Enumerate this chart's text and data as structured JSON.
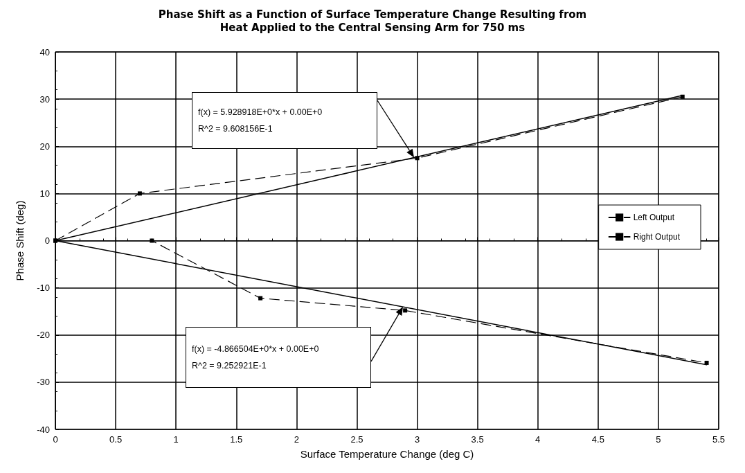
{
  "chart_data": {
    "type": "line",
    "title": "Phase Shift as a Function of Surface Temperature Change Resulting from\nHeat Applied to the Central Sensing Arm for 750 ms",
    "xlabel": "Surface Temperature Change (deg C)",
    "ylabel": "Phase Shift (deg)",
    "series": [
      {
        "name": "Left Output",
        "color": "#000000",
        "x": [
          0,
          0.7,
          3.0,
          5.2
        ],
        "values": [
          0,
          10,
          17.5,
          30.5
        ]
      },
      {
        "name": "Right Output",
        "color": "#000000",
        "x": [
          0,
          0.8,
          1.7,
          2.9,
          5.4
        ],
        "values": [
          0,
          0,
          -12.2,
          -14.8,
          -25.9
        ]
      },
      {
        "color": "#000000",
        "x": [
          0,
          5.2
        ],
        "values": [
          0,
          30.8
        ],
        "line_style": "solid",
        "marker": "none"
      },
      {
        "color": "#000000",
        "x": [
          0,
          5.4
        ],
        "values": [
          0,
          -26.3
        ],
        "line_style": "solid",
        "marker": "none"
      }
    ],
    "annotations": [
      "f(x) = 5.928918E+0*x + 0.00E+0\nR^2 = 9.608156E-1",
      "f(x) = -4.866504E+0*x + 0.00E+0\nR^2 = 9.252921E-1"
    ],
    "xlim": [
      0,
      5.5
    ],
    "xticks": [
      0,
      0.5,
      1,
      1.5,
      2,
      2.5,
      3,
      3.5,
      4,
      4.5,
      5,
      5.5
    ],
    "ylim": [
      -40,
      40
    ],
    "yticks": [
      -40,
      -30,
      -20,
      -10,
      0,
      10,
      20,
      30,
      40
    ],
    "grid": true,
    "legend": "right",
    "marker": "square",
    "line_style": "dashed"
  }
}
